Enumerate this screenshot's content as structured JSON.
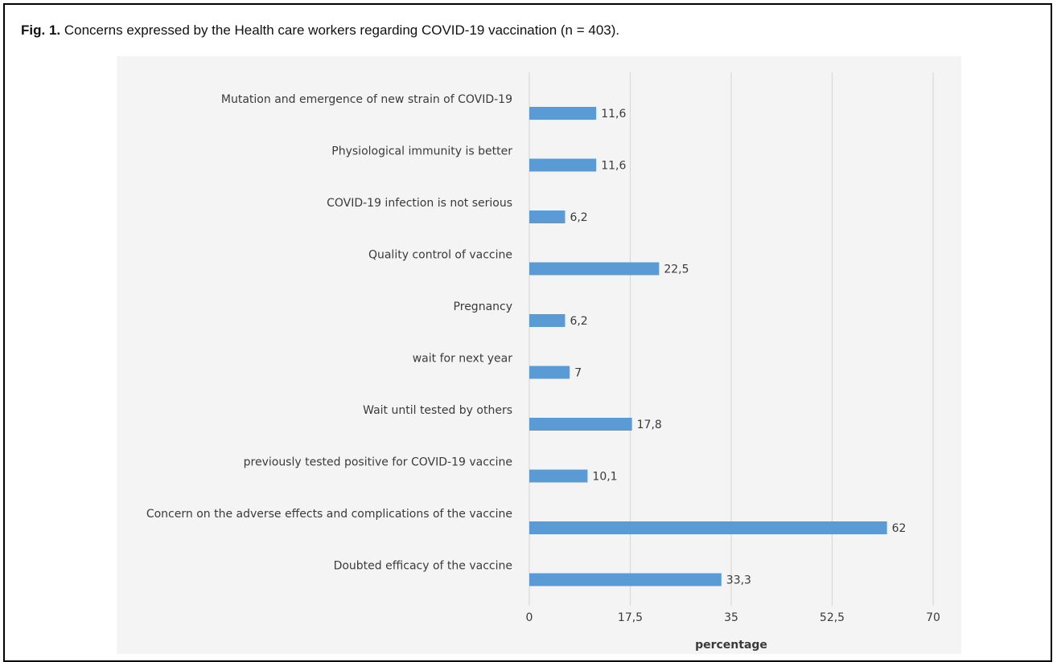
{
  "caption": {
    "label": "Fig. 1.",
    "text": "Concerns expressed by the Health care workers regarding COVID-19 vaccination (n = 403)."
  },
  "chart_data": {
    "type": "bar",
    "orientation": "horizontal",
    "categories": [
      "Mutation and emergence of new strain of COVID-19",
      "Physiological immunity is better",
      "COVID-19 infection is not serious",
      "Quality control of vaccine",
      "Pregnancy",
      "wait for next year",
      "Wait until tested by others",
      "previously tested positive for COVID-19 vaccine",
      "Concern on the adverse effects and complications of the vaccine",
      "Doubted efficacy of the vaccine"
    ],
    "values": [
      11.6,
      11.6,
      6.2,
      22.5,
      6.2,
      7,
      17.8,
      10.1,
      62,
      33.3
    ],
    "value_labels": [
      "11,6",
      "11,6",
      "6,2",
      "22,5",
      "6,2",
      "7",
      "17,8",
      "10,1",
      "62",
      "33,3"
    ],
    "xlabel": "percentage",
    "ylabel": "",
    "xlim": [
      0,
      70
    ],
    "xticks": [
      0,
      17.5,
      35,
      52.5,
      70
    ],
    "xtick_labels": [
      "0",
      "17,5",
      "35",
      "52,5",
      "70"
    ],
    "grid": "vertical",
    "bar_color": "#5b9bd5",
    "grid_color": "#d9d9d9"
  }
}
